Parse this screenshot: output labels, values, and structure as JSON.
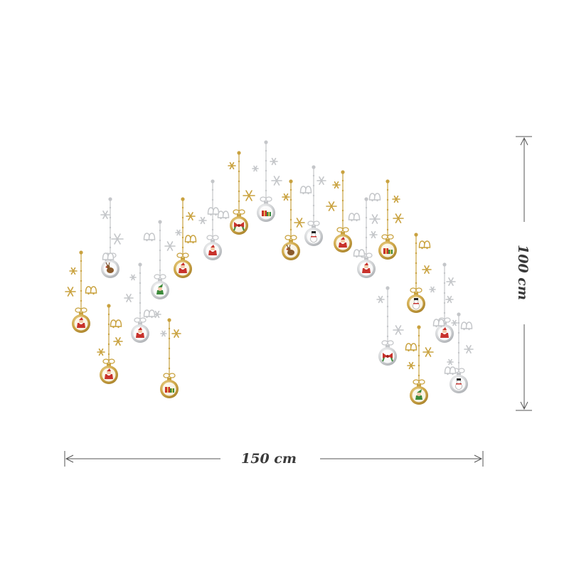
{
  "dimensions": {
    "width_label": "150 cm",
    "height_label": "100 cm"
  },
  "colors": {
    "gold": "#c9a23f",
    "silver": "#c4c6c9",
    "dimension_line": "#555555",
    "red": "#c8322c",
    "green": "#3c8a3a"
  },
  "ornament_motifs": [
    "santa",
    "reindeer",
    "gift",
    "snowman",
    "elf",
    "bow",
    "snowflake",
    "bells"
  ]
}
